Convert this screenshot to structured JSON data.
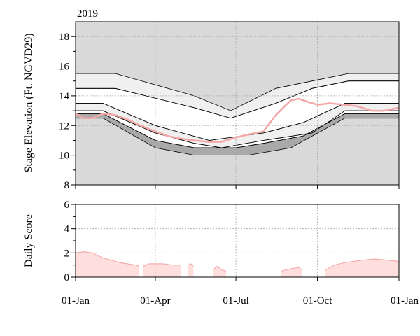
{
  "chart_data": [
    {
      "type": "area",
      "year_label": "2019",
      "ylabel": "Stage Elevation (Ft. NGVD29)",
      "xlabel": "",
      "xlim": [
        "2019-01-01",
        "2020-01-01"
      ],
      "ylim": [
        8,
        19
      ],
      "yticks": [
        8,
        10,
        12,
        14,
        16,
        18
      ],
      "grid": true,
      "background_color": "#d9d9d9",
      "stage_line_color": "#f4a8a8",
      "bands": [
        {
          "fill": "#f0f0f0",
          "upper": {
            "x": [
              "2019-01-01",
              "2019-02-15",
              "2019-05-15",
              "2019-06-25",
              "2019-08-15",
              "2019-09-25",
              "2019-11-05",
              "2020-01-01"
            ],
            "y": [
              15.5,
              15.5,
              14.0,
              13.0,
              14.5,
              15.0,
              15.5,
              15.5
            ]
          },
          "lower": {
            "x": [
              "2019-01-01",
              "2019-02-15",
              "2019-05-15",
              "2019-06-25",
              "2019-08-15",
              "2019-09-25",
              "2019-11-05",
              "2020-01-01"
            ],
            "y": [
              14.5,
              14.5,
              13.2,
              12.5,
              13.5,
              14.5,
              15.0,
              15.0
            ]
          }
        },
        {
          "fill": "#ffffff",
          "upper": {
            "x": [
              "2019-01-01",
              "2019-02-15",
              "2019-05-15",
              "2019-06-25",
              "2019-08-15",
              "2019-09-25",
              "2019-11-05",
              "2020-01-01"
            ],
            "y": [
              14.5,
              14.5,
              13.2,
              12.5,
              13.5,
              14.5,
              15.0,
              15.0
            ]
          },
          "lower": {
            "x": [
              "2019-01-01",
              "2019-02-01",
              "2019-04-01",
              "2019-06-01",
              "2019-08-01",
              "2019-09-15",
              "2019-11-01",
              "2020-01-01"
            ],
            "y": [
              13.5,
              13.5,
              12.0,
              11.0,
              11.5,
              12.2,
              13.5,
              13.5
            ]
          }
        },
        {
          "fill": "#f0f0f0",
          "upper": {
            "x": [
              "2019-01-01",
              "2019-02-01",
              "2019-04-01",
              "2019-06-01",
              "2019-08-01",
              "2019-09-15",
              "2019-11-01",
              "2020-01-01"
            ],
            "y": [
              13.5,
              13.5,
              12.0,
              11.0,
              11.5,
              12.2,
              13.5,
              13.5
            ]
          },
          "lower": {
            "x": [
              "2019-01-01",
              "2019-02-01",
              "2019-04-01",
              "2019-05-15",
              "2019-06-15",
              "2019-08-01",
              "2019-09-25",
              "2019-11-01",
              "2020-01-01"
            ],
            "y": [
              13.0,
              13.0,
              11.5,
              10.8,
              10.5,
              11.0,
              11.5,
              13.0,
              13.0
            ]
          }
        },
        {
          "fill": "#ffffff",
          "upper": {
            "x": [
              "2019-01-01",
              "2019-02-01",
              "2019-04-01",
              "2019-05-15",
              "2019-06-15",
              "2019-08-01",
              "2019-09-25",
              "2019-11-01",
              "2020-01-01"
            ],
            "y": [
              13.0,
              13.0,
              11.5,
              10.8,
              10.5,
              11.0,
              11.5,
              13.0,
              13.0
            ]
          },
          "lower": {
            "x": [
              "2019-01-01",
              "2019-02-01",
              "2019-04-01",
              "2019-05-15",
              "2019-06-01",
              "2019-07-01",
              "2019-08-01",
              "2019-09-15",
              "2019-11-01",
              "2020-01-01"
            ],
            "y": [
              12.8,
              12.8,
              11.0,
              10.5,
              10.5,
              10.5,
              10.8,
              11.3,
              12.8,
              12.8
            ]
          }
        },
        {
          "fill": "#a9a9a9",
          "upper": {
            "x": [
              "2019-01-01",
              "2019-02-01",
              "2019-04-01",
              "2019-05-15",
              "2019-06-01",
              "2019-07-01",
              "2019-08-01",
              "2019-09-15",
              "2019-11-01",
              "2020-01-01"
            ],
            "y": [
              12.8,
              12.8,
              11.0,
              10.5,
              10.5,
              10.5,
              10.8,
              11.3,
              12.8,
              12.8
            ]
          },
          "lower": {
            "x": [
              "2019-01-01",
              "2019-02-01",
              "2019-04-01",
              "2019-05-15",
              "2019-07-15",
              "2019-09-01",
              "2019-11-01",
              "2020-01-01"
            ],
            "y": [
              12.5,
              12.5,
              10.5,
              10.0,
              10.0,
              10.5,
              12.5,
              12.5
            ]
          }
        }
      ],
      "stage_series": {
        "x": [
          "2019-01-01",
          "2019-01-10",
          "2019-01-20",
          "2019-02-01",
          "2019-02-15",
          "2019-03-01",
          "2019-03-15",
          "2019-04-01",
          "2019-04-15",
          "2019-05-01",
          "2019-05-15",
          "2019-06-01",
          "2019-06-15",
          "2019-07-01",
          "2019-07-15",
          "2019-08-01",
          "2019-08-15",
          "2019-08-25",
          "2019-09-01",
          "2019-09-10",
          "2019-09-20",
          "2019-10-01",
          "2019-10-15",
          "2019-11-01",
          "2019-11-15",
          "2019-12-01",
          "2019-12-15",
          "2020-01-01"
        ],
        "y": [
          12.8,
          12.5,
          12.5,
          12.8,
          12.7,
          12.4,
          12.0,
          11.6,
          11.3,
          11.1,
          11.0,
          10.9,
          10.9,
          11.2,
          11.4,
          11.6,
          12.7,
          13.3,
          13.7,
          13.8,
          13.6,
          13.4,
          13.5,
          13.4,
          13.3,
          13.0,
          13.0,
          13.2
        ]
      }
    },
    {
      "type": "area",
      "ylabel": "Daily Score",
      "xlabel": "",
      "ylim": [
        0,
        6
      ],
      "yticks": [
        0,
        2,
        4,
        6
      ],
      "grid": true,
      "fill_color": "#ffdede",
      "line_color": "#f4a0a0",
      "segments": [
        {
          "x": [
            "2019-01-01",
            "2019-01-10",
            "2019-01-20",
            "2019-02-01",
            "2019-02-20",
            "2019-03-10",
            "2019-03-14"
          ],
          "y": [
            2.0,
            2.1,
            2.0,
            1.6,
            1.2,
            1.0,
            0.9
          ]
        },
        {
          "x": [
            "2019-03-18",
            "2019-03-25",
            "2019-04-10",
            "2019-04-20",
            "2019-04-30"
          ],
          "y": [
            0.9,
            1.1,
            1.1,
            1.0,
            1.0
          ]
        },
        {
          "x": [
            "2019-05-08",
            "2019-05-11",
            "2019-05-14"
          ],
          "y": [
            1.0,
            1.1,
            0.9
          ]
        },
        {
          "x": [
            "2019-06-05",
            "2019-06-10",
            "2019-06-15",
            "2019-06-20"
          ],
          "y": [
            0.6,
            0.9,
            0.6,
            0.5
          ]
        },
        {
          "x": [
            "2019-08-21",
            "2019-09-01",
            "2019-09-10",
            "2019-09-14"
          ],
          "y": [
            0.5,
            0.7,
            0.8,
            0.6
          ]
        },
        {
          "x": [
            "2019-10-10",
            "2019-10-20",
            "2019-11-01",
            "2019-11-20",
            "2019-12-05",
            "2019-12-20",
            "2020-01-01"
          ],
          "y": [
            0.6,
            1.0,
            1.2,
            1.4,
            1.5,
            1.4,
            1.3
          ]
        }
      ]
    }
  ],
  "x_axis": {
    "tick_labels": [
      "01-Jan",
      "01-Apr",
      "01-Jul",
      "01-Oct",
      "01-Jan"
    ],
    "tick_dates": [
      "2019-01-01",
      "2019-04-01",
      "2019-07-01",
      "2019-10-01",
      "2020-01-01"
    ]
  }
}
